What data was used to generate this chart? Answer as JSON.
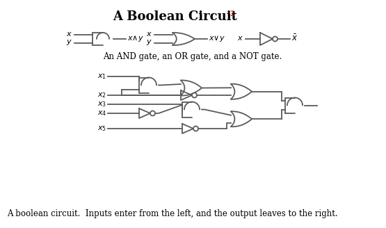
{
  "title": "A Boolean Circuit",
  "title_super": "2",
  "caption_top": "An AND gate, an OR gate, and a NOT gate.",
  "caption_bottom": "A boolean circuit.  Inputs enter from the left, and the output leaves to the right.",
  "bg": "#ffffff",
  "lc": "#5a5a5a",
  "tc": "#000000",
  "rc": "#cc0000",
  "lw": 1.3,
  "fig_w": 5.55,
  "fig_h": 3.28,
  "dpi": 100
}
